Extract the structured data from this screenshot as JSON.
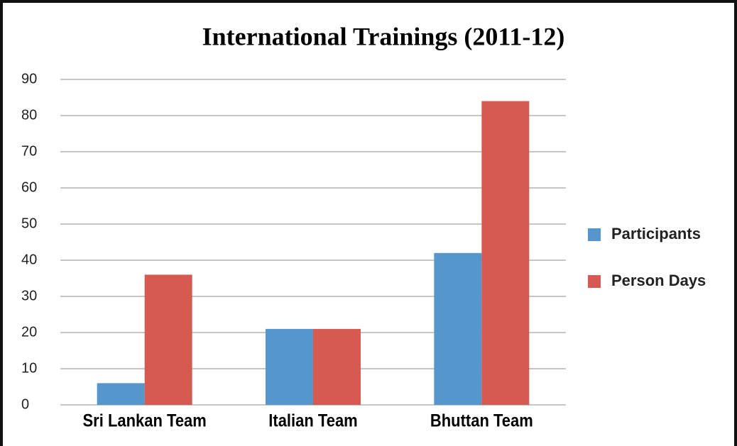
{
  "chart_data": {
    "type": "bar",
    "title": "International Trainings (2011-12)",
    "categories": [
      "Sri Lankan Team",
      "Italian Team",
      "Bhuttan Team"
    ],
    "series": [
      {
        "name": "Participants",
        "color": "#5596cc",
        "values": [
          6,
          21,
          42
        ]
      },
      {
        "name": "Person Days",
        "color": "#d65a52",
        "values": [
          36,
          21,
          84
        ]
      }
    ],
    "ylim": [
      0,
      90
    ],
    "yticks": [
      0,
      10,
      20,
      30,
      40,
      50,
      60,
      70,
      80,
      90
    ],
    "grid": true,
    "legend": "right"
  }
}
